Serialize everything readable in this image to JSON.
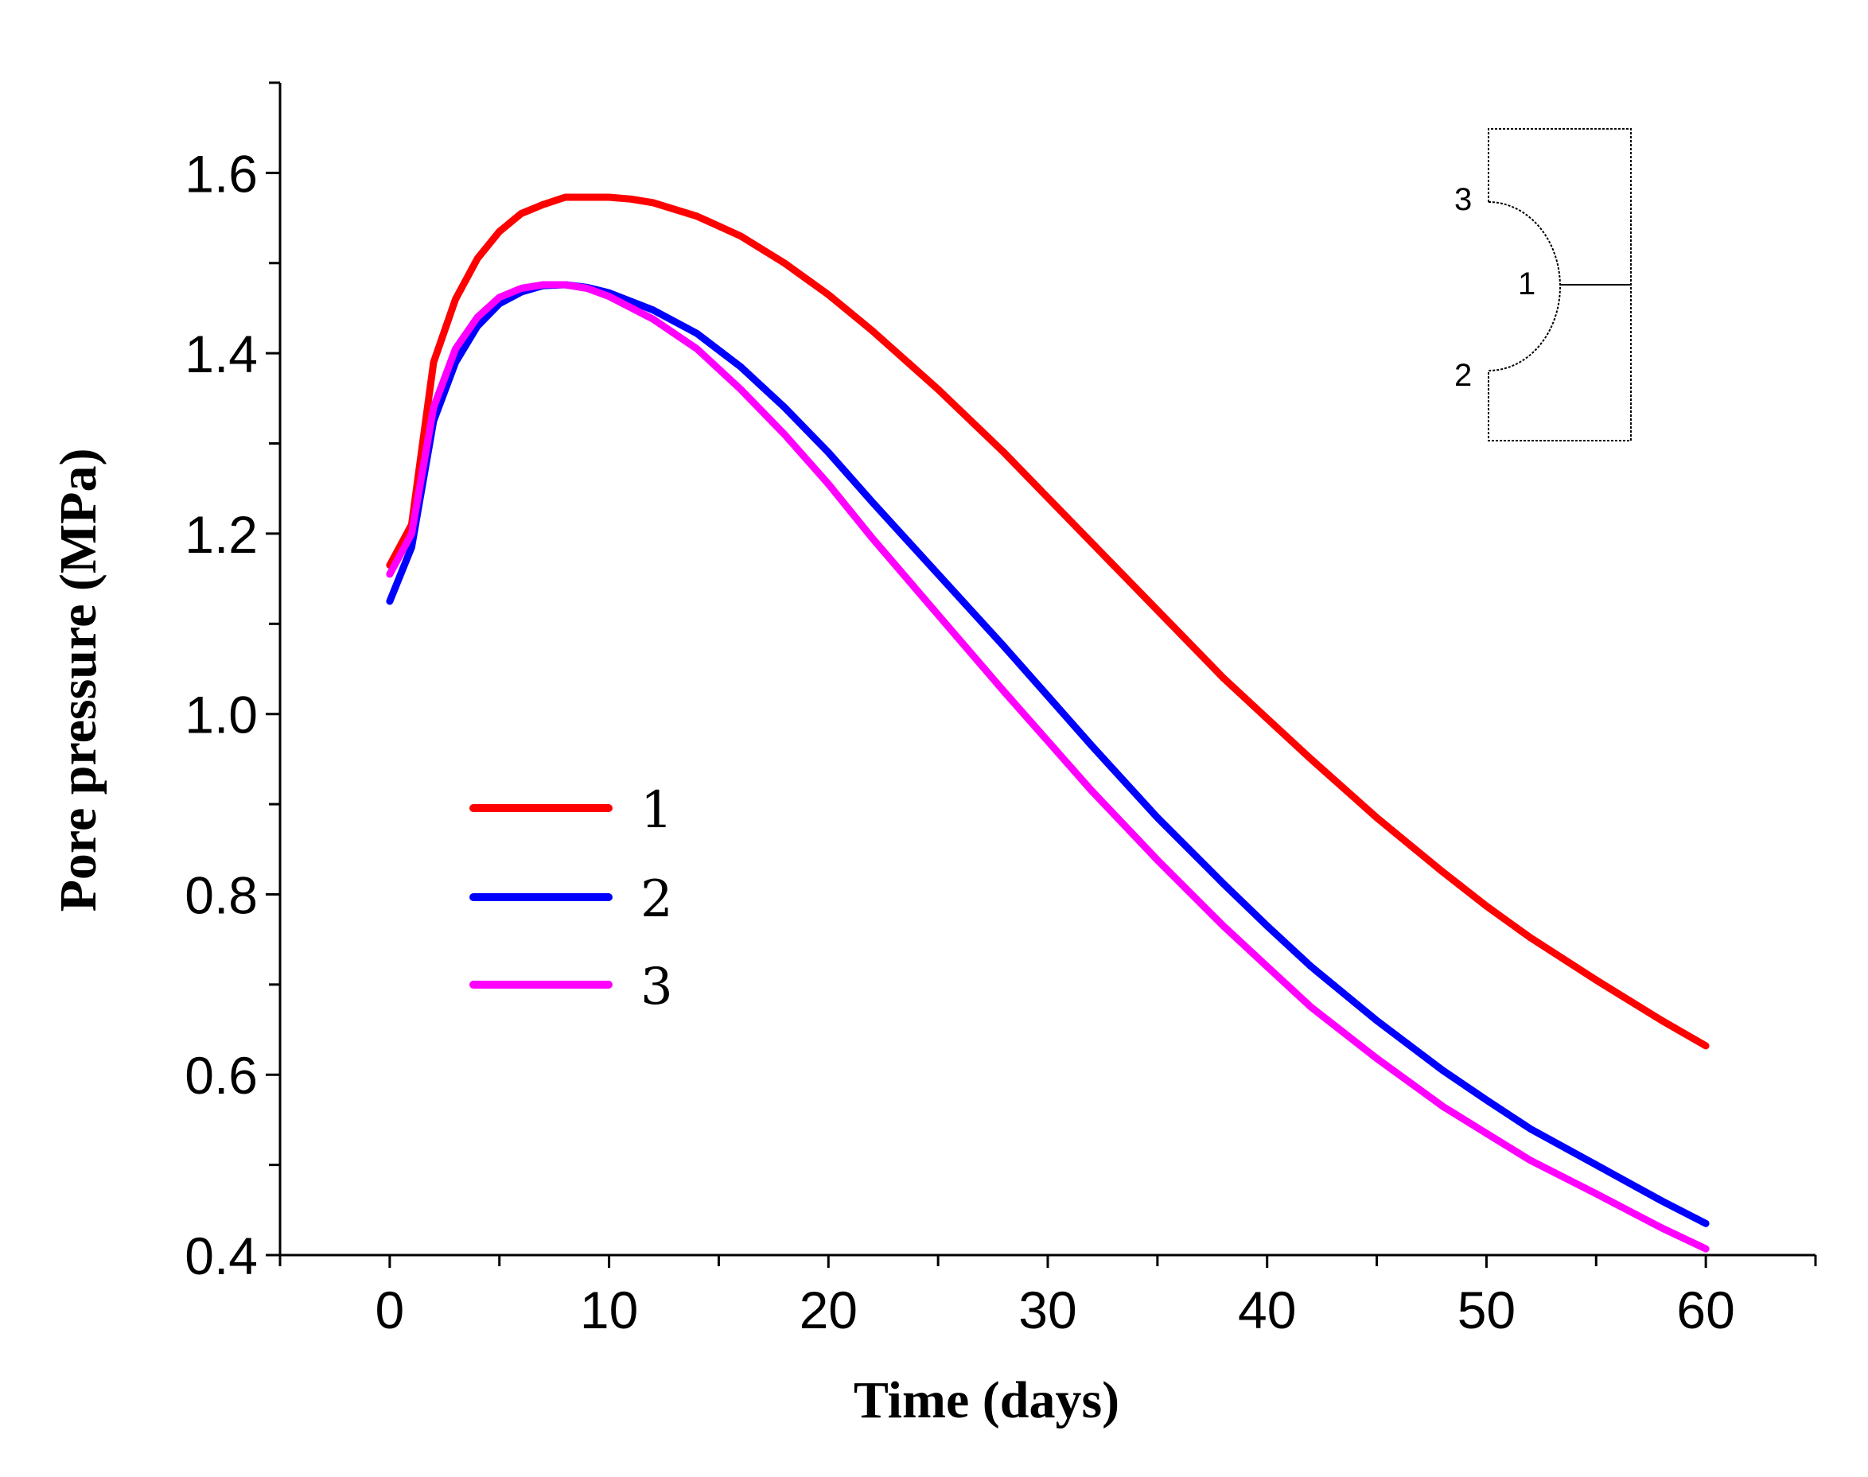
{
  "chart_data": {
    "type": "line",
    "title": "",
    "xlabel": "Time (days)",
    "ylabel": "Pore pressure (MPa)",
    "xlim": [
      -5,
      65
    ],
    "ylim": [
      0.4,
      1.7
    ],
    "xticks": [
      0,
      10,
      20,
      30,
      40,
      50,
      60
    ],
    "xtick_labels": [
      "0",
      "10",
      "20",
      "30",
      "40",
      "50",
      "60"
    ],
    "yticks": [
      0.4,
      0.6,
      0.8,
      1.0,
      1.2,
      1.4,
      1.6
    ],
    "ytick_labels": [
      "0.4",
      "0.6",
      "0.8",
      "1.0",
      "1.2",
      "1.4",
      "1.6"
    ],
    "grid": false,
    "legend_position": "center-left",
    "series": [
      {
        "name": "1",
        "color": "#ff0000",
        "x": [
          0,
          1,
          2,
          3,
          4,
          5,
          6,
          7,
          8,
          9,
          10,
          11,
          12,
          14,
          16,
          18,
          20,
          22,
          25,
          28,
          30,
          32,
          35,
          38,
          40,
          42,
          45,
          48,
          50,
          52,
          55,
          58,
          60
        ],
        "y": [
          1.165,
          1.21,
          1.39,
          1.46,
          1.505,
          1.535,
          1.555,
          1.565,
          1.573,
          1.573,
          1.573,
          1.571,
          1.567,
          1.552,
          1.53,
          1.5,
          1.465,
          1.425,
          1.36,
          1.29,
          1.24,
          1.19,
          1.115,
          1.04,
          0.995,
          0.95,
          0.885,
          0.825,
          0.787,
          0.752,
          0.705,
          0.66,
          0.632
        ]
      },
      {
        "name": "2",
        "color": "#0000ff",
        "x": [
          0,
          1,
          2,
          3,
          4,
          5,
          6,
          7,
          8,
          9,
          10,
          12,
          14,
          16,
          18,
          20,
          22,
          25,
          28,
          30,
          32,
          35,
          38,
          40,
          42,
          45,
          48,
          50,
          52,
          55,
          58,
          60
        ],
        "y": [
          1.125,
          1.185,
          1.325,
          1.39,
          1.43,
          1.455,
          1.468,
          1.475,
          1.476,
          1.473,
          1.467,
          1.448,
          1.422,
          1.385,
          1.34,
          1.29,
          1.235,
          1.155,
          1.075,
          1.02,
          0.965,
          0.885,
          0.812,
          0.765,
          0.72,
          0.66,
          0.605,
          0.572,
          0.54,
          0.5,
          0.46,
          0.435
        ]
      },
      {
        "name": "3",
        "color": "#ff00ff",
        "x": [
          0,
          1,
          2,
          3,
          4,
          5,
          6,
          7,
          8,
          9,
          10,
          12,
          14,
          16,
          18,
          20,
          22,
          25,
          28,
          30,
          32,
          35,
          38,
          40,
          42,
          45,
          48,
          50,
          52,
          55,
          58,
          60
        ],
        "y": [
          1.155,
          1.2,
          1.34,
          1.405,
          1.44,
          1.462,
          1.472,
          1.476,
          1.476,
          1.472,
          1.463,
          1.438,
          1.405,
          1.36,
          1.31,
          1.255,
          1.195,
          1.11,
          1.025,
          0.97,
          0.915,
          0.838,
          0.765,
          0.72,
          0.675,
          0.618,
          0.565,
          0.535,
          0.505,
          0.468,
          0.43,
          0.407
        ]
      }
    ],
    "inset": {
      "labels": [
        "1",
        "2",
        "3"
      ]
    }
  }
}
